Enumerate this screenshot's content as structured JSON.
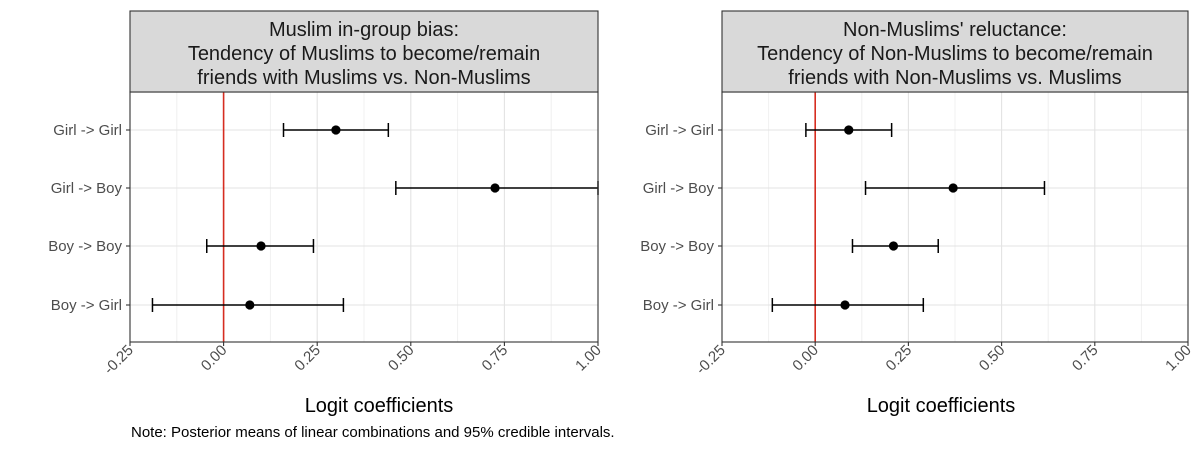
{
  "chart_data": [
    {
      "type": "errorbar",
      "title_lines": [
        "Muslim in-group bias:",
        "Tendency of Muslims to become/remain",
        "friends with Muslims vs. Non-Muslims"
      ],
      "xlabel": "Logit coefficients",
      "xlim": [
        -0.25,
        1.0
      ],
      "xticks": [
        "-0.25",
        "0.00",
        "0.25",
        "0.50",
        "0.75",
        "1.00"
      ],
      "xtick_values": [
        -0.25,
        0,
        0.25,
        0.5,
        0.75,
        1.0
      ],
      "reference_line": 0,
      "reference_color": "#d62d20",
      "categories": [
        "Girl -> Girl",
        "Girl -> Boy",
        "Boy -> Boy",
        "Boy -> Girl"
      ],
      "estimates": [
        0.3,
        0.725,
        0.1,
        0.07
      ],
      "lower": [
        0.16,
        0.46,
        -0.045,
        -0.19
      ],
      "upper": [
        0.44,
        1.0,
        0.24,
        0.32
      ]
    },
    {
      "type": "errorbar",
      "title_lines": [
        "Non-Muslims' reluctance:",
        "Tendency of Non-Muslims to become/remain",
        "friends with Non-Muslims vs. Muslims"
      ],
      "xlabel": "Logit coefficients",
      "xlim": [
        -0.25,
        1.0
      ],
      "xticks": [
        "-0.25",
        "0.00",
        "0.25",
        "0.50",
        "0.75",
        "1.00"
      ],
      "xtick_values": [
        -0.25,
        0,
        0.25,
        0.5,
        0.75,
        1.0
      ],
      "reference_line": 0,
      "reference_color": "#d62d20",
      "categories": [
        "Girl -> Girl",
        "Girl -> Boy",
        "Boy -> Boy",
        "Boy -> Girl"
      ],
      "estimates": [
        0.09,
        0.37,
        0.21,
        0.08
      ],
      "lower": [
        -0.025,
        0.135,
        0.1,
        -0.115
      ],
      "upper": [
        0.205,
        0.615,
        0.33,
        0.29
      ]
    }
  ],
  "note": "Note: Posterior means of linear combinations and 95% credible intervals."
}
